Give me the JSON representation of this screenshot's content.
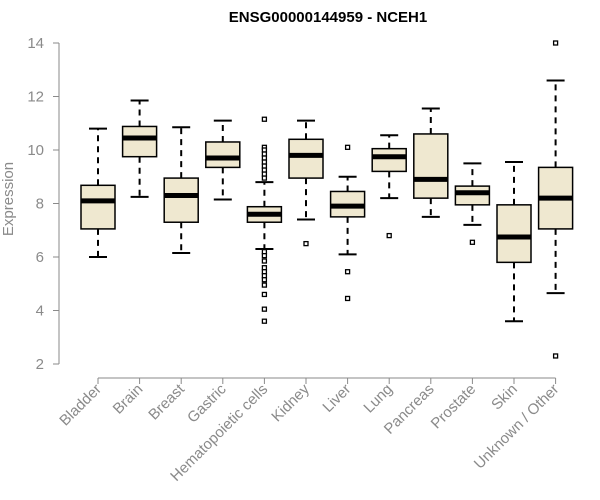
{
  "chart_data": {
    "type": "boxplot",
    "title": "ENSG00000144959 - NCEH1",
    "xlabel": "",
    "ylabel": "Expression",
    "ylim": [
      2,
      14
    ],
    "yticks": [
      2,
      4,
      6,
      8,
      10,
      12,
      14
    ],
    "box_fill": "#efe8d0",
    "categories": [
      "Bladder",
      "Brain",
      "Breast",
      "Gastric",
      "Hematopoietic cells",
      "Kidney",
      "Liver",
      "Lung",
      "Pancreas",
      "Prostate",
      "Skin",
      "Unknown / Other"
    ],
    "boxes": [
      {
        "whisker_low": 6.0,
        "q1": 7.05,
        "median": 8.1,
        "q3": 8.68,
        "whisker_high": 10.8,
        "outliers": []
      },
      {
        "whisker_low": 8.25,
        "q1": 9.75,
        "median": 10.45,
        "q3": 10.88,
        "whisker_high": 11.85,
        "outliers": []
      },
      {
        "whisker_low": 6.15,
        "q1": 7.3,
        "median": 8.3,
        "q3": 8.95,
        "whisker_high": 10.85,
        "outliers": []
      },
      {
        "whisker_low": 8.15,
        "q1": 9.35,
        "median": 9.7,
        "q3": 10.3,
        "whisker_high": 11.1,
        "outliers": []
      },
      {
        "whisker_low": 6.3,
        "q1": 7.3,
        "median": 7.6,
        "q3": 7.88,
        "whisker_high": 8.8,
        "outliers": [
          11.15,
          10.1,
          10.0,
          9.85,
          9.7,
          9.55,
          9.4,
          9.25,
          9.1,
          8.95,
          6.2,
          6.05,
          5.85,
          5.6,
          5.45,
          5.3,
          5.15,
          4.95,
          4.6,
          4.05,
          3.6
        ]
      },
      {
        "whisker_low": 7.4,
        "q1": 8.95,
        "median": 9.8,
        "q3": 10.4,
        "whisker_high": 11.1,
        "outliers": [
          6.5
        ]
      },
      {
        "whisker_low": 6.1,
        "q1": 7.5,
        "median": 7.9,
        "q3": 8.45,
        "whisker_high": 9.0,
        "outliers": [
          10.1,
          5.45,
          4.45
        ]
      },
      {
        "whisker_low": 8.2,
        "q1": 9.2,
        "median": 9.75,
        "q3": 10.05,
        "whisker_high": 10.55,
        "outliers": [
          6.8
        ]
      },
      {
        "whisker_low": 7.5,
        "q1": 8.2,
        "median": 8.9,
        "q3": 10.6,
        "whisker_high": 11.55,
        "outliers": []
      },
      {
        "whisker_low": 7.2,
        "q1": 7.95,
        "median": 8.4,
        "q3": 8.65,
        "whisker_high": 9.5,
        "outliers": [
          6.55
        ]
      },
      {
        "whisker_low": 3.6,
        "q1": 5.8,
        "median": 6.75,
        "q3": 7.95,
        "whisker_high": 9.55,
        "outliers": []
      },
      {
        "whisker_low": 4.65,
        "q1": 7.05,
        "median": 8.2,
        "q3": 9.35,
        "whisker_high": 12.6,
        "outliers": [
          14.0,
          2.3
        ]
      }
    ]
  }
}
